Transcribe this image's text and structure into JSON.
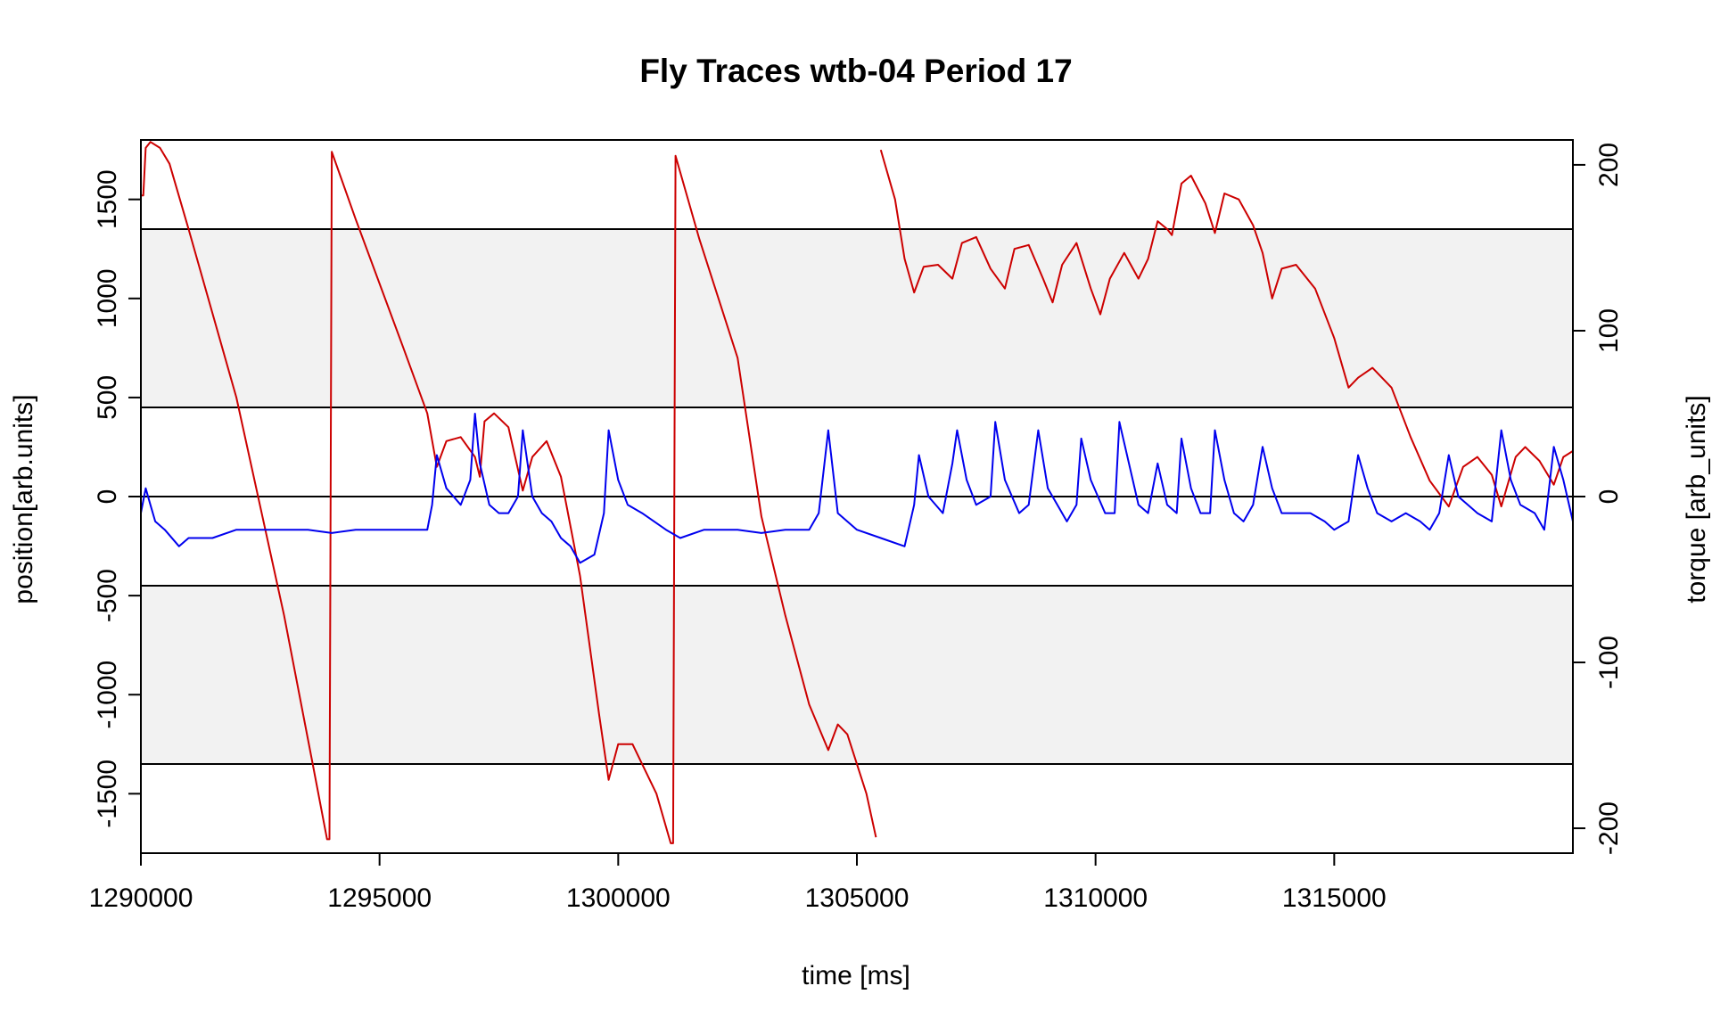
{
  "chart_data": {
    "type": "line",
    "title": "Fly Traces wtb-04 Period 17",
    "xlabel": "time [ms]",
    "ylabel": "position[arb.units]",
    "ylabel_right": "torque [arb_units]",
    "xlim": [
      1290000,
      1320000
    ],
    "ylim": [
      -1800,
      1800
    ],
    "ylim_right": [
      -215,
      215
    ],
    "x_ticks": [
      1290000,
      1295000,
      1300000,
      1305000,
      1310000,
      1315000
    ],
    "y_ticks": [
      -1500,
      -1000,
      -500,
      0,
      500,
      1000,
      1500
    ],
    "y_ticks_right": [
      -200,
      -100,
      0,
      100,
      200
    ],
    "bands": [
      [
        450,
        1350
      ],
      [
        -1350,
        -450
      ]
    ],
    "hlines": [
      1350,
      450,
      0,
      -450,
      -1350
    ],
    "colors": {
      "position": "#cc0000",
      "torque": "#0000ee",
      "band": "#f2f2f2",
      "axis": "#000000"
    },
    "series": [
      {
        "axis": "left",
        "color": "#cc0000",
        "segments": [
          [
            [
              1290000,
              1520
            ],
            [
              1290050,
              1520
            ],
            [
              1290100,
              1760
            ],
            [
              1290200,
              1790
            ],
            [
              1290400,
              1760
            ],
            [
              1290600,
              1680
            ],
            [
              1291000,
              1350
            ],
            [
              1292000,
              500
            ],
            [
              1293000,
              -600
            ],
            [
              1293600,
              -1350
            ],
            [
              1293900,
              -1730
            ],
            [
              1293950,
              -1730
            ],
            [
              1294000,
              1740
            ],
            [
              1294500,
              1400
            ],
            [
              1295500,
              750
            ],
            [
              1296000,
              420
            ],
            [
              1296200,
              150
            ],
            [
              1296400,
              280
            ],
            [
              1296700,
              300
            ],
            [
              1297000,
              200
            ],
            [
              1297100,
              100
            ],
            [
              1297200,
              380
            ],
            [
              1297400,
              420
            ],
            [
              1297700,
              350
            ],
            [
              1298000,
              30
            ],
            [
              1298200,
              200
            ],
            [
              1298500,
              280
            ],
            [
              1298800,
              100
            ],
            [
              1299200,
              -400
            ],
            [
              1299600,
              -1100
            ],
            [
              1299800,
              -1430
            ],
            [
              1300000,
              -1250
            ],
            [
              1300300,
              -1250
            ],
            [
              1300800,
              -1500
            ],
            [
              1301100,
              -1750
            ],
            [
              1301150,
              -1750
            ],
            [
              1301200,
              1720
            ],
            [
              1301700,
              1300
            ],
            [
              1302500,
              700
            ],
            [
              1303000,
              -100
            ],
            [
              1303500,
              -600
            ],
            [
              1304000,
              -1050
            ],
            [
              1304400,
              -1280
            ],
            [
              1304600,
              -1150
            ],
            [
              1304800,
              -1200
            ],
            [
              1305200,
              -1500
            ],
            [
              1305400,
              -1720
            ]
          ],
          [
            [
              1305500,
              1750
            ],
            [
              1305800,
              1500
            ],
            [
              1306000,
              1200
            ],
            [
              1306200,
              1030
            ],
            [
              1306400,
              1160
            ],
            [
              1306700,
              1170
            ],
            [
              1307000,
              1100
            ],
            [
              1307200,
              1280
            ],
            [
              1307500,
              1310
            ],
            [
              1307800,
              1150
            ],
            [
              1308100,
              1050
            ],
            [
              1308300,
              1250
            ],
            [
              1308600,
              1270
            ],
            [
              1308900,
              1100
            ],
            [
              1309100,
              980
            ],
            [
              1309300,
              1170
            ],
            [
              1309600,
              1280
            ],
            [
              1309900,
              1050
            ],
            [
              1310100,
              920
            ],
            [
              1310300,
              1100
            ],
            [
              1310600,
              1230
            ],
            [
              1310900,
              1100
            ],
            [
              1311100,
              1200
            ],
            [
              1311300,
              1390
            ],
            [
              1311500,
              1350
            ],
            [
              1311600,
              1320
            ],
            [
              1311800,
              1580
            ],
            [
              1312000,
              1620
            ],
            [
              1312300,
              1480
            ],
            [
              1312500,
              1330
            ],
            [
              1312700,
              1530
            ],
            [
              1313000,
              1500
            ],
            [
              1313300,
              1370
            ],
            [
              1313500,
              1230
            ],
            [
              1313700,
              1000
            ],
            [
              1313900,
              1150
            ],
            [
              1314200,
              1170
            ],
            [
              1314600,
              1050
            ],
            [
              1315000,
              800
            ],
            [
              1315300,
              550
            ],
            [
              1315500,
              600
            ],
            [
              1315800,
              650
            ],
            [
              1316200,
              550
            ],
            [
              1316600,
              300
            ],
            [
              1317000,
              80
            ],
            [
              1317400,
              -50
            ],
            [
              1317700,
              150
            ],
            [
              1318000,
              200
            ],
            [
              1318300,
              110
            ],
            [
              1318500,
              -50
            ],
            [
              1318800,
              200
            ],
            [
              1319000,
              250
            ],
            [
              1319300,
              180
            ],
            [
              1319600,
              60
            ],
            [
              1319800,
              200
            ],
            [
              1320000,
              230
            ],
            [
              1320000,
              230
            ]
          ]
        ]
      },
      {
        "axis": "right",
        "color": "#0000ee",
        "segments": [
          [
            [
              1290000,
              -10
            ],
            [
              1290100,
              5
            ],
            [
              1290200,
              -5
            ],
            [
              1290300,
              -15
            ],
            [
              1290500,
              -20
            ],
            [
              1290800,
              -30
            ],
            [
              1291000,
              -25
            ],
            [
              1291500,
              -25
            ],
            [
              1292000,
              -20
            ],
            [
              1292500,
              -20
            ],
            [
              1293000,
              -20
            ],
            [
              1293500,
              -20
            ],
            [
              1294000,
              -22
            ],
            [
              1294500,
              -20
            ],
            [
              1295000,
              -20
            ],
            [
              1295500,
              -20
            ],
            [
              1296000,
              -20
            ],
            [
              1296100,
              -5
            ],
            [
              1296200,
              25
            ],
            [
              1296400,
              5
            ],
            [
              1296700,
              -5
            ],
            [
              1296900,
              10
            ],
            [
              1297000,
              50
            ],
            [
              1297100,
              20
            ],
            [
              1297300,
              -5
            ],
            [
              1297500,
              -10
            ],
            [
              1297700,
              -10
            ],
            [
              1297900,
              0
            ],
            [
              1298000,
              40
            ],
            [
              1298200,
              0
            ],
            [
              1298400,
              -10
            ],
            [
              1298600,
              -15
            ],
            [
              1298800,
              -25
            ],
            [
              1299000,
              -30
            ],
            [
              1299200,
              -40
            ],
            [
              1299500,
              -35
            ],
            [
              1299700,
              -10
            ],
            [
              1299800,
              40
            ],
            [
              1300000,
              10
            ],
            [
              1300200,
              -5
            ],
            [
              1300500,
              -10
            ],
            [
              1301000,
              -20
            ],
            [
              1301300,
              -25
            ],
            [
              1301800,
              -20
            ],
            [
              1302500,
              -20
            ],
            [
              1303000,
              -22
            ],
            [
              1303500,
              -20
            ],
            [
              1304000,
              -20
            ],
            [
              1304200,
              -10
            ],
            [
              1304400,
              40
            ],
            [
              1304600,
              -10
            ],
            [
              1305000,
              -20
            ],
            [
              1305500,
              -25
            ],
            [
              1306000,
              -30
            ],
            [
              1306200,
              -5
            ],
            [
              1306300,
              25
            ],
            [
              1306500,
              0
            ],
            [
              1306800,
              -10
            ],
            [
              1307000,
              20
            ],
            [
              1307100,
              40
            ],
            [
              1307300,
              10
            ],
            [
              1307500,
              -5
            ],
            [
              1307800,
              0
            ],
            [
              1307900,
              45
            ],
            [
              1308100,
              10
            ],
            [
              1308400,
              -10
            ],
            [
              1308600,
              -5
            ],
            [
              1308800,
              40
            ],
            [
              1309000,
              5
            ],
            [
              1309200,
              -5
            ],
            [
              1309400,
              -15
            ],
            [
              1309600,
              -5
            ],
            [
              1309700,
              35
            ],
            [
              1309900,
              10
            ],
            [
              1310200,
              -10
            ],
            [
              1310400,
              -10
            ],
            [
              1310500,
              45
            ],
            [
              1310700,
              20
            ],
            [
              1310900,
              -5
            ],
            [
              1311100,
              -10
            ],
            [
              1311300,
              20
            ],
            [
              1311500,
              -5
            ],
            [
              1311700,
              -10
            ],
            [
              1311800,
              35
            ],
            [
              1312000,
              5
            ],
            [
              1312200,
              -10
            ],
            [
              1312400,
              -10
            ],
            [
              1312500,
              40
            ],
            [
              1312700,
              10
            ],
            [
              1312900,
              -10
            ],
            [
              1313100,
              -15
            ],
            [
              1313300,
              -5
            ],
            [
              1313500,
              30
            ],
            [
              1313700,
              5
            ],
            [
              1313900,
              -10
            ],
            [
              1314200,
              -10
            ],
            [
              1314500,
              -10
            ],
            [
              1314800,
              -15
            ],
            [
              1315000,
              -20
            ],
            [
              1315300,
              -15
            ],
            [
              1315500,
              25
            ],
            [
              1315700,
              5
            ],
            [
              1315900,
              -10
            ],
            [
              1316200,
              -15
            ],
            [
              1316500,
              -10
            ],
            [
              1316800,
              -15
            ],
            [
              1317000,
              -20
            ],
            [
              1317200,
              -10
            ],
            [
              1317400,
              25
            ],
            [
              1317600,
              0
            ],
            [
              1318000,
              -10
            ],
            [
              1318300,
              -15
            ],
            [
              1318500,
              40
            ],
            [
              1318700,
              10
            ],
            [
              1318900,
              -5
            ],
            [
              1319200,
              -10
            ],
            [
              1319400,
              -20
            ],
            [
              1319600,
              30
            ],
            [
              1319800,
              10
            ],
            [
              1320000,
              -15
            ]
          ]
        ]
      }
    ]
  }
}
